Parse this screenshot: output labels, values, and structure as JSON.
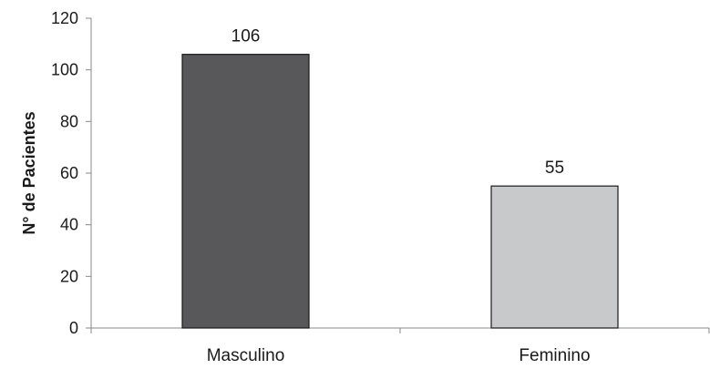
{
  "chart_data": {
    "type": "bar",
    "title": "",
    "xlabel": "",
    "ylabel": "N° de Pacientes",
    "ylim": [
      0,
      120
    ],
    "yticks": [
      0,
      20,
      40,
      60,
      80,
      100,
      120
    ],
    "categories": [
      "Masculino",
      "Feminino"
    ],
    "values": [
      106,
      55
    ],
    "data_labels": [
      "106",
      "55"
    ],
    "colors": [
      "#58585a",
      "#c8c9cb"
    ],
    "grid": false,
    "legend": "none"
  }
}
